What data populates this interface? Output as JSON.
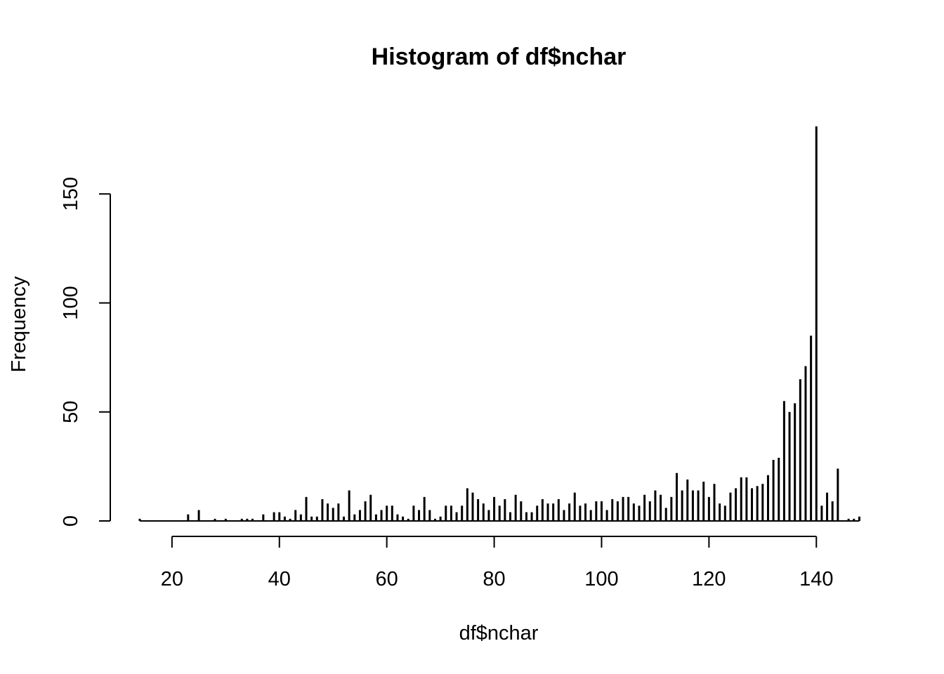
{
  "chart_data": {
    "type": "bar",
    "title": "Histogram of df$nchar",
    "xlabel": "df$nchar",
    "ylabel": "Frequency",
    "xlim": [
      14,
      148
    ],
    "ylim": [
      0,
      180
    ],
    "x_ticks": [
      20,
      40,
      60,
      80,
      100,
      120,
      140
    ],
    "y_ticks": [
      0,
      50,
      100,
      150
    ],
    "grid": false,
    "legend": "none",
    "bar_color": "#000000",
    "x": [
      14,
      15,
      16,
      17,
      18,
      19,
      20,
      21,
      22,
      23,
      24,
      25,
      26,
      27,
      28,
      29,
      30,
      31,
      32,
      33,
      34,
      35,
      36,
      37,
      38,
      39,
      40,
      41,
      42,
      43,
      44,
      45,
      46,
      47,
      48,
      49,
      50,
      51,
      52,
      53,
      54,
      55,
      56,
      57,
      58,
      59,
      60,
      61,
      62,
      63,
      64,
      65,
      66,
      67,
      68,
      69,
      70,
      71,
      72,
      73,
      74,
      75,
      76,
      77,
      78,
      79,
      80,
      81,
      82,
      83,
      84,
      85,
      86,
      87,
      88,
      89,
      90,
      91,
      92,
      93,
      94,
      95,
      96,
      97,
      98,
      99,
      100,
      101,
      102,
      103,
      104,
      105,
      106,
      107,
      108,
      109,
      110,
      111,
      112,
      113,
      114,
      115,
      116,
      117,
      118,
      119,
      120,
      121,
      122,
      123,
      124,
      125,
      126,
      127,
      128,
      129,
      130,
      131,
      132,
      133,
      134,
      135,
      136,
      137,
      138,
      139,
      140,
      141,
      142,
      143,
      144,
      145,
      146,
      147,
      148
    ],
    "values": [
      1,
      0,
      0,
      0,
      0,
      0,
      0,
      0,
      0,
      3,
      0,
      5,
      0,
      0,
      1,
      0,
      1,
      0,
      0,
      1,
      1,
      1,
      0,
      3,
      0,
      4,
      4,
      2,
      1,
      5,
      3,
      11,
      2,
      2,
      10,
      8,
      6,
      8,
      2,
      14,
      3,
      5,
      9,
      12,
      3,
      5,
      7,
      7,
      3,
      2,
      1,
      7,
      5,
      11,
      5,
      1,
      2,
      7,
      7,
      4,
      7,
      15,
      13,
      10,
      8,
      5,
      11,
      7,
      10,
      4,
      12,
      9,
      4,
      4,
      7,
      10,
      8,
      8,
      10,
      5,
      8,
      13,
      7,
      8,
      5,
      9,
      9,
      5,
      10,
      9,
      11,
      11,
      8,
      7,
      12,
      9,
      14,
      12,
      6,
      11,
      22,
      14,
      19,
      14,
      14,
      18,
      11,
      17,
      8,
      7,
      13,
      15,
      20,
      20,
      15,
      16,
      17,
      21,
      28,
      29,
      55,
      50,
      54,
      65,
      71,
      85,
      181,
      7,
      13,
      9,
      24,
      0,
      1,
      1,
      2
    ]
  }
}
